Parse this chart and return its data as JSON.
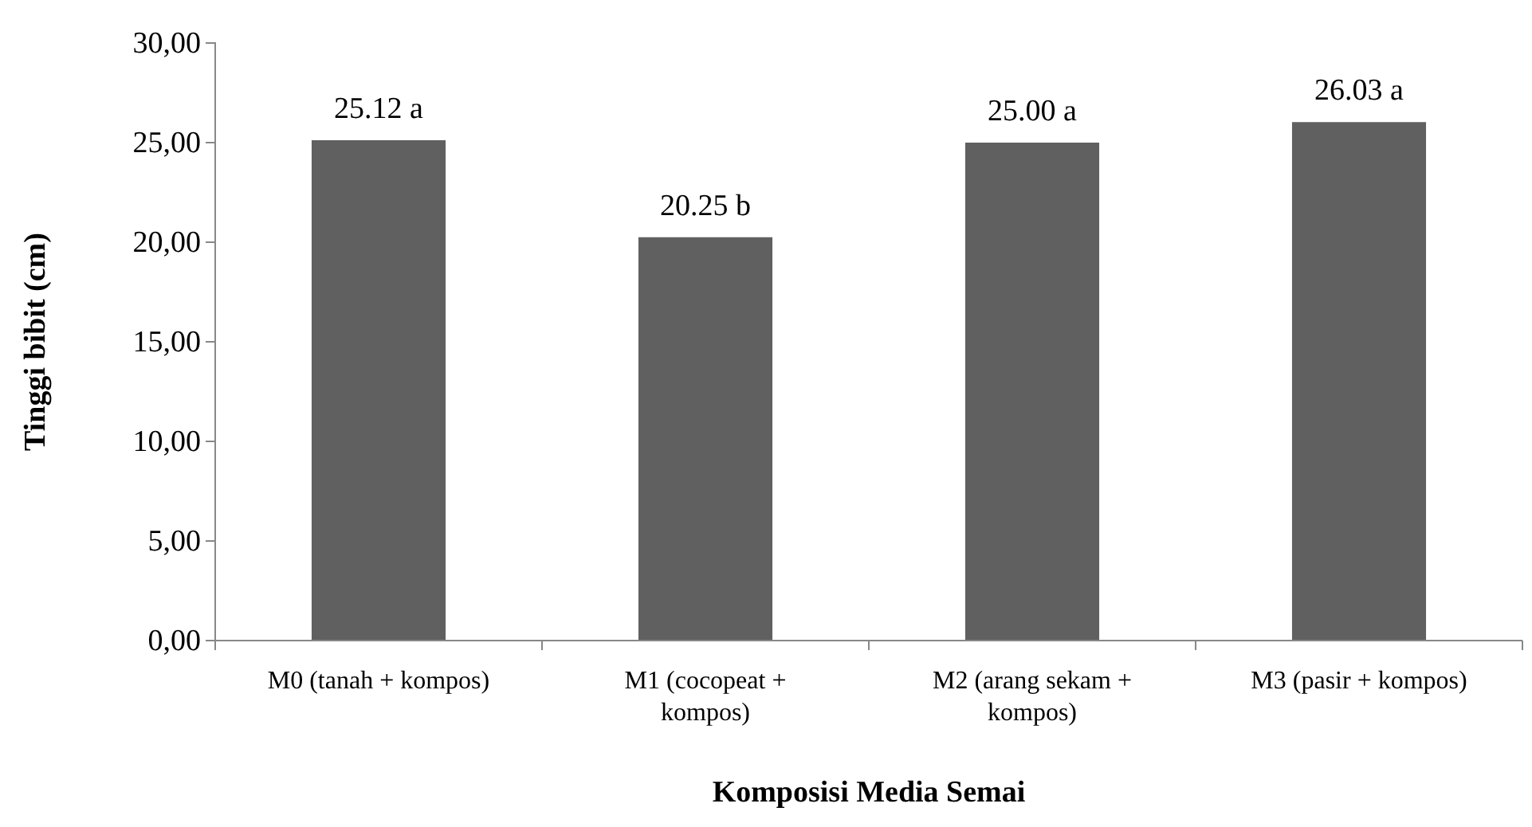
{
  "chart_data": {
    "type": "bar",
    "categories": [
      "M0 (tanah + kompos)",
      "M1 (cocopeat + kompos)",
      "M2 (arang sekam + kompos)",
      "M3 (pasir + kompos)"
    ],
    "values": [
      25.12,
      20.25,
      25.0,
      26.03
    ],
    "value_labels": [
      "25.12 a",
      "20.25 b",
      "25.00 a",
      "26.03 a"
    ],
    "color": "#606060",
    "xlabel": "Komposisi Media Semai",
    "ylabel": "Tinggi bibit (cm)",
    "ylim": [
      0,
      30
    ],
    "yticks": [
      {
        "value": 0,
        "label": "0,00"
      },
      {
        "value": 5,
        "label": "5,00"
      },
      {
        "value": 10,
        "label": "10,00"
      },
      {
        "value": 15,
        "label": "15,00"
      },
      {
        "value": 20,
        "label": "20,00"
      },
      {
        "value": 25,
        "label": "25,00"
      },
      {
        "value": 30,
        "label": "30,00"
      }
    ],
    "grid": false
  }
}
